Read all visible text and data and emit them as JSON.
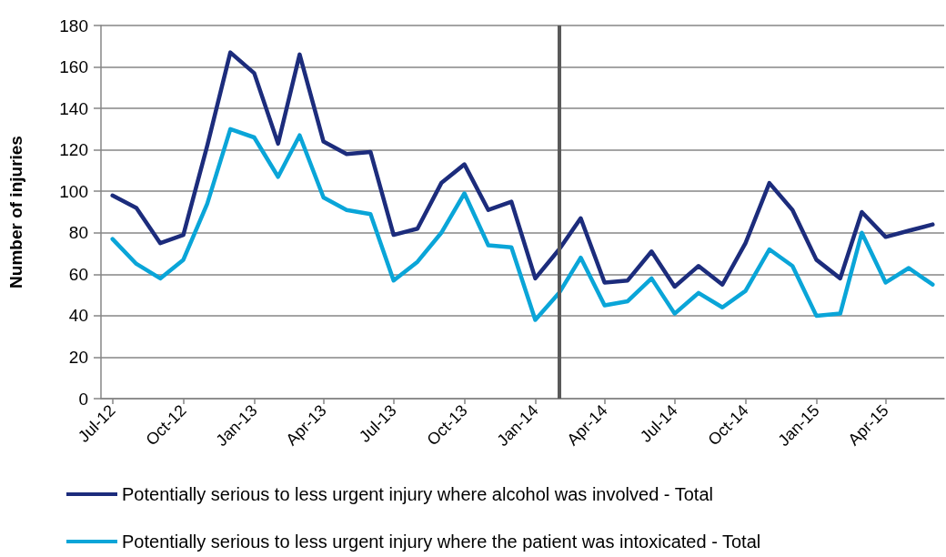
{
  "chart_data": {
    "type": "line",
    "ylabel": "Number of injuries",
    "x": [
      "2012-07",
      "2012-08",
      "2012-09",
      "2012-10",
      "2012-11",
      "2012-12",
      "2013-01",
      "2013-02",
      "2013-03",
      "2013-04",
      "2013-05",
      "2013-06",
      "2013-07",
      "2013-08",
      "2013-09",
      "2013-10",
      "2013-11",
      "2013-12",
      "2014-01",
      "2014-02",
      "2014-03",
      "2014-04",
      "2014-05",
      "2014-06",
      "2014-07",
      "2014-08",
      "2014-09",
      "2014-10",
      "2014-11",
      "2014-12",
      "2015-01",
      "2015-02",
      "2015-03",
      "2015-04",
      "2015-05",
      "2015-06"
    ],
    "series": [
      {
        "name": "Potentially serious to less urgent injury where alcohol was involved - Total",
        "color": "#1c2c7c",
        "values": [
          98,
          92,
          75,
          79,
          122,
          167,
          157,
          123,
          166,
          124,
          118,
          119,
          79,
          82,
          104,
          113,
          91,
          95,
          58,
          72,
          87,
          56,
          57,
          71,
          54,
          64,
          55,
          75,
          104,
          91,
          67,
          58,
          90,
          78,
          81,
          84
        ]
      },
      {
        "name": "Potentially serious to less urgent injury where the patient was intoxicated - Total",
        "color": "#0aa5d8",
        "values": [
          77,
          65,
          58,
          67,
          94,
          130,
          126,
          107,
          127,
          97,
          91,
          89,
          57,
          66,
          80,
          99,
          74,
          73,
          38,
          51,
          68,
          45,
          47,
          58,
          41,
          51,
          44,
          52,
          72,
          64,
          40,
          41,
          80,
          56,
          63,
          55
        ]
      }
    ],
    "xlim": [
      "2012-06-16",
      "2015-06-16"
    ],
    "xticks": [
      {
        "value": "2012-07",
        "label": "Jul-12"
      },
      {
        "value": "2012-10",
        "label": "Oct-12"
      },
      {
        "value": "2013-01",
        "label": "Jan-13"
      },
      {
        "value": "2013-04",
        "label": "Apr-13"
      },
      {
        "value": "2013-07",
        "label": "Jul-13"
      },
      {
        "value": "2013-10",
        "label": "Oct-13"
      },
      {
        "value": "2014-01",
        "label": "Jan-14"
      },
      {
        "value": "2014-04",
        "label": "Apr-14"
      },
      {
        "value": "2014-07",
        "label": "Jul-14"
      },
      {
        "value": "2014-10",
        "label": "Oct-14"
      },
      {
        "value": "2015-01",
        "label": "Jan-15"
      },
      {
        "value": "2015-04",
        "label": "Apr-15"
      }
    ],
    "ylim": [
      0,
      180
    ],
    "yticks": [
      0,
      20,
      40,
      60,
      80,
      100,
      120,
      140,
      160,
      180
    ],
    "ref_lines": [
      {
        "axis": "x",
        "value": "2014-02",
        "color": "#595959"
      }
    ],
    "grid": "y",
    "legend": "bottom",
    "marker": "none",
    "line_style": "solid"
  }
}
